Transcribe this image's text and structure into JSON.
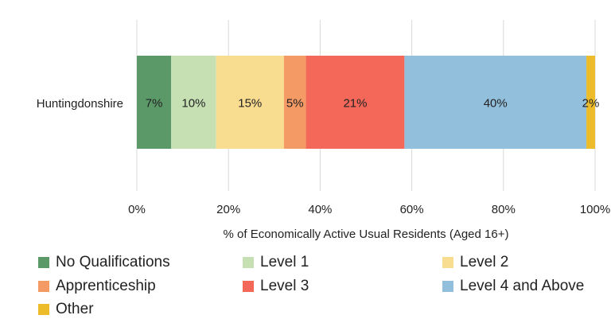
{
  "chart_data": {
    "type": "bar",
    "orientation": "horizontal",
    "stacked": true,
    "categories": [
      "Huntingdonshire"
    ],
    "xlabel": "% of Economically Active Usual Residents (Aged 16+)",
    "ylabel": "",
    "xlim": [
      0,
      100
    ],
    "xticks": [
      "0%",
      "20%",
      "40%",
      "60%",
      "80%",
      "100%"
    ],
    "grid": true,
    "legend_position": "bottom",
    "series": [
      {
        "name": "No Qualifications",
        "values": [
          7.5
        ],
        "label": "7%",
        "color": "#5b9a68"
      },
      {
        "name": "Level 1",
        "values": [
          9.8
        ],
        "label": "10%",
        "color": "#c6e0b4"
      },
      {
        "name": "Level 2",
        "values": [
          14.8
        ],
        "label": "15%",
        "color": "#f8dc90"
      },
      {
        "name": "Apprenticeship",
        "values": [
          4.8
        ],
        "label": "5%",
        "color": "#f49a64"
      },
      {
        "name": "Level 3",
        "values": [
          21.5
        ],
        "label": "21%",
        "color": "#f4685a"
      },
      {
        "name": "Level 4 and Above",
        "values": [
          39.7
        ],
        "label": "40%",
        "color": "#92bfdb"
      },
      {
        "name": "Other",
        "values": [
          1.9
        ],
        "label": "2%",
        "color": "#ecbc2a"
      }
    ]
  }
}
